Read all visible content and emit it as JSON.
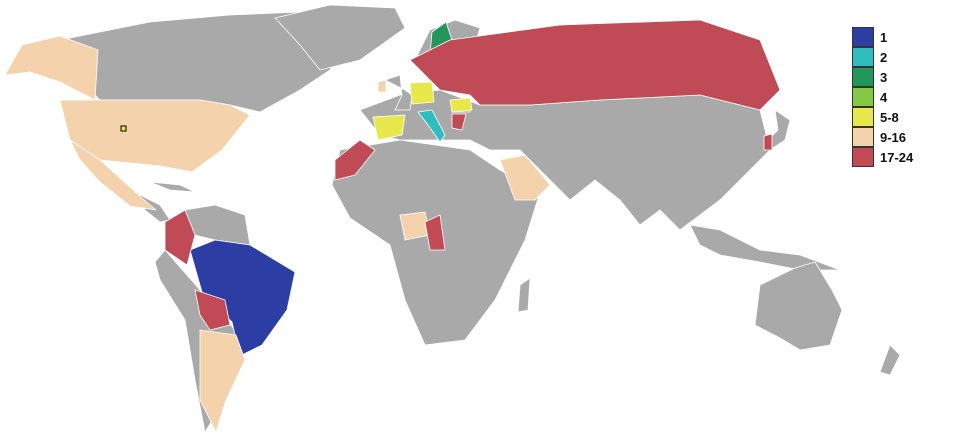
{
  "legend": [
    {
      "label": "1",
      "color": "#2c3ea3"
    },
    {
      "label": "2",
      "color": "#2fbdbf"
    },
    {
      "label": "3",
      "color": "#23965a"
    },
    {
      "label": "4",
      "color": "#84c943"
    },
    {
      "label": "5-8",
      "color": "#e8e84a"
    },
    {
      "label": "9-16",
      "color": "#f4d3ac"
    },
    {
      "label": "17-24",
      "color": "#c04a55"
    }
  ],
  "land_color": "#a9a9a9"
}
